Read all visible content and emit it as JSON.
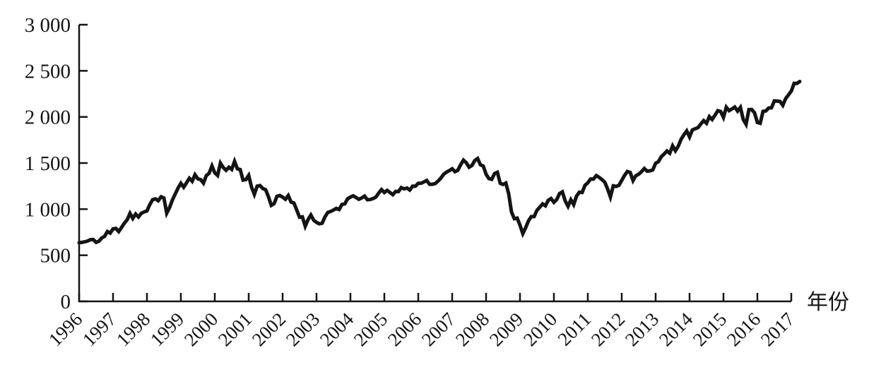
{
  "chart_data": {
    "type": "line",
    "title": "",
    "xlabel": "年份",
    "ylabel": "",
    "x_start": 1996,
    "points_per_year": 12,
    "xlim": [
      1996,
      2017.4
    ],
    "ylim": [
      0,
      3000
    ],
    "grid": false,
    "legend": "none",
    "line_color": "#141414",
    "axis_color": "#141414",
    "yticks": [
      0,
      500,
      1000,
      1500,
      2000,
      2500,
      3000
    ],
    "ytick_labels": [
      "0",
      "500",
      "1 000",
      "1 500",
      "2 000",
      "2 500",
      "3 000"
    ],
    "xticks": [
      1996,
      1997,
      1998,
      1999,
      2000,
      2001,
      2002,
      2003,
      2004,
      2005,
      2006,
      2007,
      2008,
      2009,
      2010,
      2011,
      2012,
      2013,
      2014,
      2015,
      2016,
      2017
    ],
    "xtick_labels": [
      "1996",
      "1997",
      "1998",
      "1999",
      "2000",
      "2001",
      "2002",
      "2003",
      "2004",
      "2005",
      "2006",
      "2007",
      "2008",
      "2009",
      "2010",
      "2011",
      "2012",
      "2013",
      "2014",
      "2015",
      "2016",
      "2017"
    ],
    "series": [
      {
        "values": [
          636,
          640,
          646,
          654,
          669,
          671,
          640,
          652,
          687,
          705,
          757,
          741,
          786,
          791,
          757,
          801,
          848,
          885,
          954,
          899,
          947,
          915,
          955,
          970,
          980,
          1049,
          1102,
          1112,
          1091,
          1134,
          1121,
          957,
          1017,
          1099,
          1164,
          1229,
          1280,
          1238,
          1286,
          1335,
          1302,
          1373,
          1329,
          1320,
          1283,
          1363,
          1389,
          1469,
          1394,
          1366,
          1499,
          1452,
          1421,
          1455,
          1431,
          1518,
          1437,
          1429,
          1315,
          1320,
          1366,
          1240,
          1160,
          1249,
          1256,
          1224,
          1211,
          1134,
          1041,
          1060,
          1139,
          1148,
          1130,
          1107,
          1147,
          1077,
          1067,
          990,
          912,
          916,
          815,
          886,
          936,
          880,
          856,
          841,
          848,
          917,
          964,
          975,
          990,
          1008,
          996,
          1051,
          1058,
          1112,
          1131,
          1145,
          1126,
          1107,
          1121,
          1141,
          1102,
          1104,
          1115,
          1130,
          1174,
          1212,
          1181,
          1204,
          1181,
          1157,
          1192,
          1191,
          1234,
          1220,
          1229,
          1207,
          1249,
          1248,
          1280,
          1281,
          1295,
          1311,
          1270,
          1270,
          1277,
          1304,
          1336,
          1378,
          1401,
          1418,
          1438,
          1407,
          1421,
          1482,
          1531,
          1503,
          1455,
          1474,
          1527,
          1549,
          1481,
          1468,
          1379,
          1331,
          1323,
          1386,
          1400,
          1280,
          1267,
          1283,
          1166,
          969,
          896,
          903,
          826,
          735,
          798,
          873,
          919,
          919,
          987,
          1021,
          1057,
          1036,
          1096,
          1115,
          1074,
          1104,
          1169,
          1187,
          1089,
          1031,
          1102,
          1049,
          1141,
          1183,
          1181,
          1258,
          1286,
          1327,
          1326,
          1364,
          1345,
          1321,
          1292,
          1219,
          1131,
          1253,
          1247,
          1258,
          1312,
          1366,
          1408,
          1398,
          1310,
          1362,
          1379,
          1407,
          1441,
          1412,
          1416,
          1426,
          1498,
          1515,
          1569,
          1598,
          1631,
          1606,
          1686,
          1633,
          1682,
          1757,
          1806,
          1848,
          1783,
          1859,
          1872,
          1884,
          1924,
          1960,
          1931,
          2003,
          1972,
          2018,
          2068,
          2059,
          1995,
          2105,
          2068,
          2086,
          2107,
          2063,
          2104,
          1972,
          1920,
          2079,
          2080,
          2044,
          1940,
          1932,
          2060,
          2065,
          2097,
          2099,
          2174,
          2171,
          2168,
          2126,
          2199,
          2239,
          2279,
          2364,
          2363,
          2384
        ]
      }
    ]
  }
}
